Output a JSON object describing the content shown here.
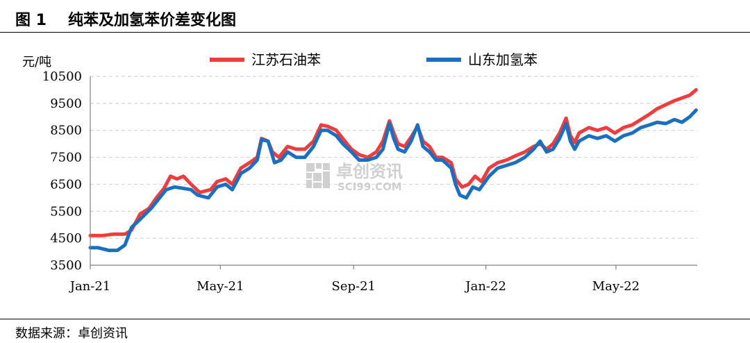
{
  "header": {
    "figure_number": "图 1",
    "title": "纯苯及加氢苯价差变化图"
  },
  "source": "数据来源：卓创资讯",
  "watermark": {
    "name": "卓创资讯",
    "url": "SCI99.COM"
  },
  "colors": {
    "jiangsu": "#f03c3c",
    "shandong": "#1a6fbf",
    "grid": "#d4d4d4",
    "axis": "#7f7f7f"
  },
  "chart_data": {
    "type": "line",
    "unit": "元/吨",
    "ylim": [
      3500,
      10500
    ],
    "yticks": [
      3500,
      4500,
      5500,
      6500,
      7500,
      8500,
      9500,
      10500
    ],
    "xlim": [
      "2021-01-01",
      "2022-07-15"
    ],
    "xticks": [
      {
        "date": "2021-01-01",
        "label": "Jan-21"
      },
      {
        "date": "2021-05-01",
        "label": "May-21"
      },
      {
        "date": "2021-09-01",
        "label": "Sep-21"
      },
      {
        "date": "2022-01-01",
        "label": "Jan-22"
      },
      {
        "date": "2022-05-01",
        "label": "May-22"
      }
    ],
    "grid": "horizontal",
    "legend_position": "top-center",
    "series": [
      {
        "name": "江苏石油苯",
        "color": "#f03c3c",
        "points": [
          [
            "2021-01-01",
            4600
          ],
          [
            "2021-01-12",
            4600
          ],
          [
            "2021-01-22",
            4650
          ],
          [
            "2021-02-02",
            4650
          ],
          [
            "2021-02-08",
            4800
          ],
          [
            "2021-02-16",
            5400
          ],
          [
            "2021-02-24",
            5600
          ],
          [
            "2021-03-03",
            6000
          ],
          [
            "2021-03-10",
            6350
          ],
          [
            "2021-03-16",
            6800
          ],
          [
            "2021-03-22",
            6700
          ],
          [
            "2021-03-28",
            6800
          ],
          [
            "2021-04-04",
            6500
          ],
          [
            "2021-04-12",
            6200
          ],
          [
            "2021-04-22",
            6300
          ],
          [
            "2021-04-28",
            6600
          ],
          [
            "2021-05-06",
            6700
          ],
          [
            "2021-05-12",
            6500
          ],
          [
            "2021-05-20",
            7100
          ],
          [
            "2021-05-28",
            7300
          ],
          [
            "2021-06-04",
            7500
          ],
          [
            "2021-06-08",
            8200
          ],
          [
            "2021-06-14",
            8100
          ],
          [
            "2021-06-18",
            7700
          ],
          [
            "2021-06-24",
            7500
          ],
          [
            "2021-07-02",
            7900
          ],
          [
            "2021-07-10",
            7800
          ],
          [
            "2021-07-18",
            7800
          ],
          [
            "2021-07-26",
            8100
          ],
          [
            "2021-08-02",
            8700
          ],
          [
            "2021-08-08",
            8650
          ],
          [
            "2021-08-16",
            8500
          ],
          [
            "2021-08-22",
            8200
          ],
          [
            "2021-08-30",
            7800
          ],
          [
            "2021-09-06",
            7600
          ],
          [
            "2021-09-14",
            7500
          ],
          [
            "2021-09-22",
            7700
          ],
          [
            "2021-09-28",
            8100
          ],
          [
            "2021-10-04",
            8850
          ],
          [
            "2021-10-08",
            8400
          ],
          [
            "2021-10-12",
            8000
          ],
          [
            "2021-10-18",
            7900
          ],
          [
            "2021-10-24",
            8250
          ],
          [
            "2021-10-30",
            8650
          ],
          [
            "2021-11-04",
            8100
          ],
          [
            "2021-11-10",
            7900
          ],
          [
            "2021-11-16",
            7500
          ],
          [
            "2021-11-22",
            7500
          ],
          [
            "2021-11-30",
            7300
          ],
          [
            "2021-12-04",
            6700
          ],
          [
            "2021-12-10",
            6400
          ],
          [
            "2021-12-16",
            6500
          ],
          [
            "2021-12-22",
            6800
          ],
          [
            "2021-12-28",
            6600
          ],
          [
            "2022-01-04",
            7100
          ],
          [
            "2022-01-12",
            7300
          ],
          [
            "2022-01-20",
            7400
          ],
          [
            "2022-01-28",
            7550
          ],
          [
            "2022-02-06",
            7700
          ],
          [
            "2022-02-14",
            7900
          ],
          [
            "2022-02-20",
            8000
          ],
          [
            "2022-02-26",
            7800
          ],
          [
            "2022-03-04",
            8000
          ],
          [
            "2022-03-10",
            8400
          ],
          [
            "2022-03-16",
            8950
          ],
          [
            "2022-03-20",
            8300
          ],
          [
            "2022-03-24",
            8050
          ],
          [
            "2022-03-28",
            8400
          ],
          [
            "2022-04-06",
            8600
          ],
          [
            "2022-04-14",
            8500
          ],
          [
            "2022-04-22",
            8600
          ],
          [
            "2022-04-30",
            8400
          ],
          [
            "2022-05-08",
            8600
          ],
          [
            "2022-05-16",
            8700
          ],
          [
            "2022-05-24",
            8900
          ],
          [
            "2022-06-01",
            9100
          ],
          [
            "2022-06-08",
            9300
          ],
          [
            "2022-06-16",
            9450
          ],
          [
            "2022-06-24",
            9600
          ],
          [
            "2022-07-01",
            9700
          ],
          [
            "2022-07-08",
            9800
          ],
          [
            "2022-07-14",
            10000
          ]
        ]
      },
      {
        "name": "山东加氢苯",
        "color": "#1a6fbf",
        "points": [
          [
            "2021-01-01",
            4150
          ],
          [
            "2021-01-08",
            4150
          ],
          [
            "2021-01-18",
            4050
          ],
          [
            "2021-01-26",
            4050
          ],
          [
            "2021-02-02",
            4250
          ],
          [
            "2021-02-08",
            4900
          ],
          [
            "2021-02-16",
            5200
          ],
          [
            "2021-02-26",
            5600
          ],
          [
            "2021-03-06",
            6000
          ],
          [
            "2021-03-12",
            6300
          ],
          [
            "2021-03-20",
            6400
          ],
          [
            "2021-03-28",
            6350
          ],
          [
            "2021-04-04",
            6300
          ],
          [
            "2021-04-10",
            6100
          ],
          [
            "2021-04-20",
            6000
          ],
          [
            "2021-04-28",
            6400
          ],
          [
            "2021-05-06",
            6500
          ],
          [
            "2021-05-12",
            6300
          ],
          [
            "2021-05-20",
            6900
          ],
          [
            "2021-05-28",
            7100
          ],
          [
            "2021-06-04",
            7400
          ],
          [
            "2021-06-08",
            8150
          ],
          [
            "2021-06-14",
            8100
          ],
          [
            "2021-06-20",
            7300
          ],
          [
            "2021-06-26",
            7400
          ],
          [
            "2021-07-02",
            7700
          ],
          [
            "2021-07-10",
            7500
          ],
          [
            "2021-07-18",
            7500
          ],
          [
            "2021-07-26",
            7900
          ],
          [
            "2021-08-02",
            8500
          ],
          [
            "2021-08-08",
            8500
          ],
          [
            "2021-08-16",
            8300
          ],
          [
            "2021-08-22",
            8000
          ],
          [
            "2021-08-30",
            7700
          ],
          [
            "2021-09-06",
            7400
          ],
          [
            "2021-09-14",
            7400
          ],
          [
            "2021-09-22",
            7500
          ],
          [
            "2021-09-28",
            7800
          ],
          [
            "2021-10-04",
            8750
          ],
          [
            "2021-10-08",
            8200
          ],
          [
            "2021-10-12",
            7800
          ],
          [
            "2021-10-18",
            7700
          ],
          [
            "2021-10-24",
            8100
          ],
          [
            "2021-10-30",
            8700
          ],
          [
            "2021-11-04",
            7900
          ],
          [
            "2021-11-10",
            7700
          ],
          [
            "2021-11-16",
            7400
          ],
          [
            "2021-11-22",
            7400
          ],
          [
            "2021-11-30",
            7100
          ],
          [
            "2021-12-04",
            6500
          ],
          [
            "2021-12-08",
            6100
          ],
          [
            "2021-12-14",
            6000
          ],
          [
            "2021-12-20",
            6400
          ],
          [
            "2021-12-26",
            6300
          ],
          [
            "2022-01-04",
            6800
          ],
          [
            "2022-01-12",
            7100
          ],
          [
            "2022-01-20",
            7200
          ],
          [
            "2022-01-28",
            7300
          ],
          [
            "2022-02-06",
            7500
          ],
          [
            "2022-02-14",
            7800
          ],
          [
            "2022-02-20",
            8100
          ],
          [
            "2022-02-26",
            7700
          ],
          [
            "2022-03-04",
            7800
          ],
          [
            "2022-03-10",
            8200
          ],
          [
            "2022-03-16",
            8750
          ],
          [
            "2022-03-20",
            8100
          ],
          [
            "2022-03-24",
            7800
          ],
          [
            "2022-03-28",
            8100
          ],
          [
            "2022-04-06",
            8300
          ],
          [
            "2022-04-14",
            8200
          ],
          [
            "2022-04-22",
            8300
          ],
          [
            "2022-04-30",
            8100
          ],
          [
            "2022-05-08",
            8300
          ],
          [
            "2022-05-16",
            8400
          ],
          [
            "2022-05-24",
            8600
          ],
          [
            "2022-06-01",
            8700
          ],
          [
            "2022-06-08",
            8800
          ],
          [
            "2022-06-16",
            8750
          ],
          [
            "2022-06-24",
            8900
          ],
          [
            "2022-07-01",
            8800
          ],
          [
            "2022-07-08",
            9000
          ],
          [
            "2022-07-14",
            9250
          ]
        ]
      }
    ]
  }
}
